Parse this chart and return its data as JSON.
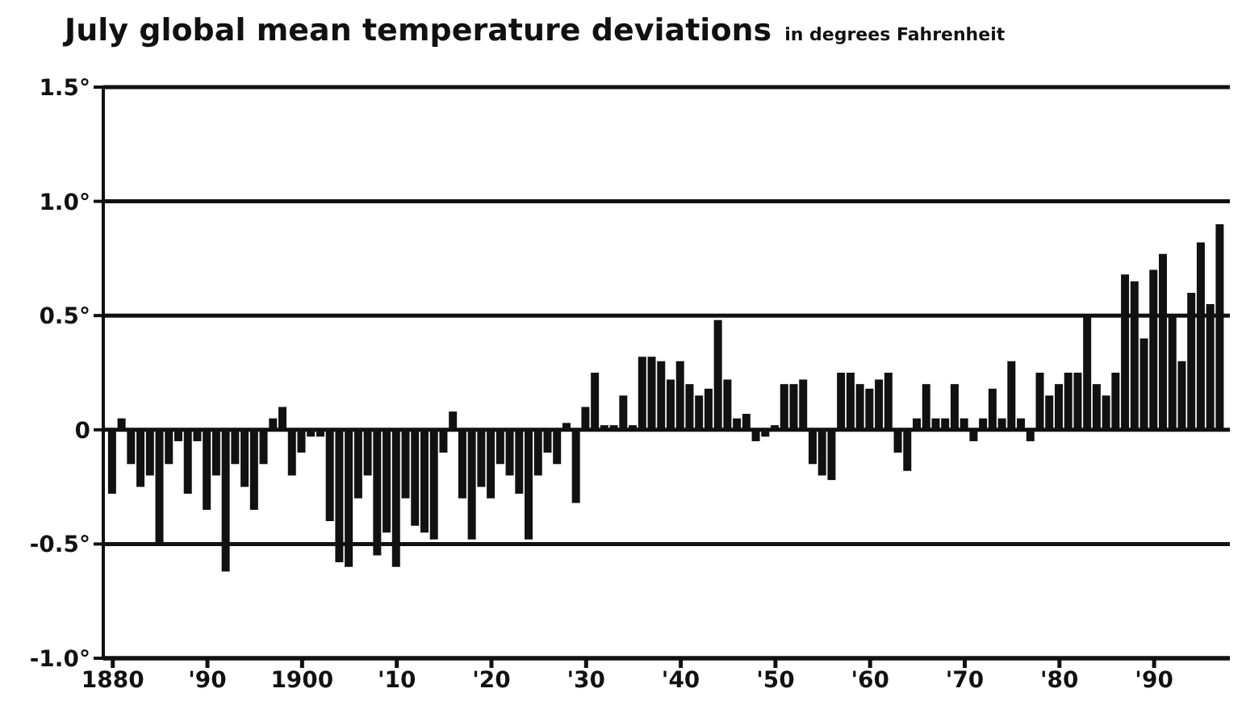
{
  "chart_data": {
    "type": "bar",
    "title": "July global mean temperature deviations",
    "subtitle": "in degrees Fahrenheit",
    "x": [
      1880,
      1881,
      1882,
      1883,
      1884,
      1885,
      1886,
      1887,
      1888,
      1889,
      1890,
      1891,
      1892,
      1893,
      1894,
      1895,
      1896,
      1897,
      1898,
      1899,
      1900,
      1901,
      1902,
      1903,
      1904,
      1905,
      1906,
      1907,
      1908,
      1909,
      1910,
      1911,
      1912,
      1913,
      1914,
      1915,
      1916,
      1917,
      1918,
      1919,
      1920,
      1921,
      1922,
      1923,
      1924,
      1925,
      1926,
      1927,
      1928,
      1929,
      1930,
      1931,
      1932,
      1933,
      1934,
      1935,
      1936,
      1937,
      1938,
      1939,
      1940,
      1941,
      1942,
      1943,
      1944,
      1945,
      1946,
      1947,
      1948,
      1949,
      1950,
      1951,
      1952,
      1953,
      1954,
      1955,
      1956,
      1957,
      1958,
      1959,
      1960,
      1961,
      1962,
      1963,
      1964,
      1965,
      1966,
      1967,
      1968,
      1969,
      1970,
      1971,
      1972,
      1973,
      1974,
      1975,
      1976,
      1977,
      1978,
      1979,
      1980,
      1981,
      1982,
      1983,
      1984,
      1985,
      1986,
      1987,
      1988,
      1989,
      1990,
      1991,
      1992,
      1993,
      1994,
      1995,
      1996,
      1997
    ],
    "values": [
      -0.28,
      0.05,
      -0.15,
      -0.25,
      -0.2,
      -0.5,
      -0.15,
      -0.05,
      -0.28,
      -0.05,
      -0.35,
      -0.2,
      -0.62,
      -0.15,
      -0.25,
      -0.35,
      -0.15,
      0.05,
      0.1,
      -0.2,
      -0.1,
      -0.03,
      -0.03,
      -0.4,
      -0.58,
      -0.6,
      -0.3,
      -0.2,
      -0.55,
      -0.45,
      -0.6,
      -0.3,
      -0.42,
      -0.45,
      -0.48,
      -0.1,
      0.08,
      -0.3,
      -0.48,
      -0.25,
      -0.3,
      -0.15,
      -0.2,
      -0.28,
      -0.48,
      -0.2,
      -0.1,
      -0.15,
      0.03,
      -0.32,
      0.1,
      0.25,
      0.02,
      0.02,
      0.15,
      0.02,
      0.32,
      0.32,
      0.3,
      0.22,
      0.3,
      0.2,
      0.15,
      0.18,
      0.48,
      0.22,
      0.05,
      0.07,
      -0.05,
      -0.03,
      0.02,
      0.2,
      0.2,
      0.22,
      -0.15,
      -0.2,
      -0.22,
      0.25,
      0.25,
      0.2,
      0.18,
      0.22,
      0.25,
      -0.1,
      -0.18,
      0.05,
      0.2,
      0.05,
      0.05,
      0.2,
      0.05,
      -0.05,
      0.05,
      0.18,
      0.05,
      0.3,
      0.05,
      -0.05,
      0.25,
      0.15,
      0.2,
      0.25,
      0.25,
      0.5,
      0.2,
      0.15,
      0.25,
      0.68,
      0.65,
      0.4,
      0.7,
      0.77,
      0.5,
      0.3,
      0.6,
      0.82,
      0.55,
      0.9
    ],
    "color": "#111111",
    "xlim": [
      1879,
      1998
    ],
    "xticks": [
      1880,
      {
        "value": 1890,
        "label": "'90"
      },
      1900,
      {
        "value": 1910,
        "label": "'10"
      },
      {
        "value": 1920,
        "label": "'20"
      },
      {
        "value": 1930,
        "label": "'30"
      },
      {
        "value": 1940,
        "label": "'40"
      },
      {
        "value": 1950,
        "label": "'50"
      },
      {
        "value": 1960,
        "label": "'60"
      },
      {
        "value": 1970,
        "label": "'70"
      },
      {
        "value": 1980,
        "label": "'80"
      },
      {
        "value": 1990,
        "label": "'90"
      }
    ],
    "ylim": [
      -1.0,
      1.5
    ],
    "yticks": [
      {
        "value": -1.0,
        "label": "-1.0°"
      },
      {
        "value": -0.5,
        "label": "-0.5°"
      },
      0,
      {
        "value": 0.5,
        "label": "0.5°"
      },
      {
        "value": 1.0,
        "label": "1.0°"
      },
      {
        "value": 1.5,
        "label": "1.5°"
      }
    ],
    "grid": "y"
  }
}
